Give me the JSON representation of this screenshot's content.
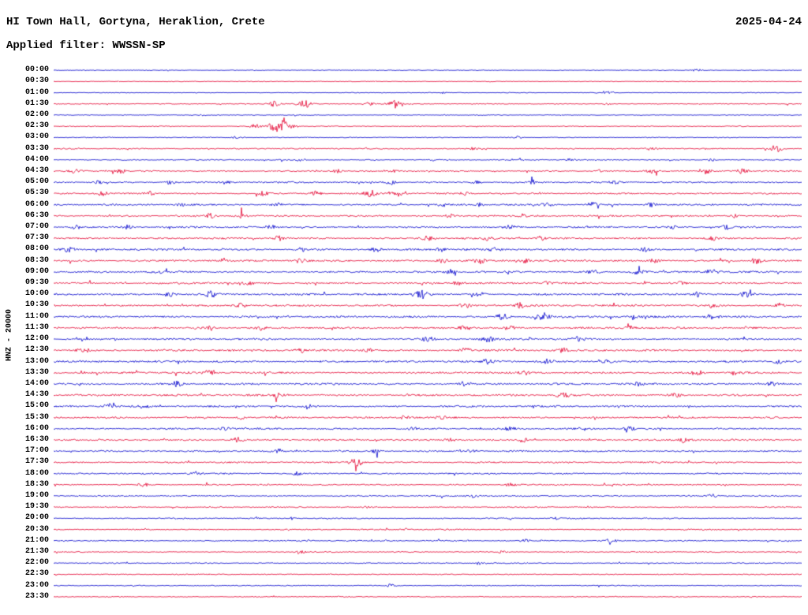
{
  "header": {
    "title": "HI Town Hall, Gortyna, Heraklion, Crete",
    "date": "2025-04-24",
    "filter_line": "Applied filter: WWSSN-SP"
  },
  "axis": {
    "left_label": "HNZ - 20000"
  },
  "chart_data": {
    "type": "line",
    "subtype": "seismogram-helicorder",
    "title": "HI Town Hall, Gortyna, Heraklion, Crete",
    "date": "2025-04-24",
    "applied_filter": "WWSSN-SP",
    "channel": "HNZ",
    "scale": 20000,
    "minutes_per_row": 30,
    "x_range_minutes": [
      0,
      30
    ],
    "grid": false,
    "legend": "none",
    "colors": {
      "blue": "#0000cc",
      "red": "#e30030"
    },
    "rows": [
      {
        "t": "00:00",
        "c": "blue",
        "n": 0.35,
        "ev": [
          [
            0.86,
            1.5
          ]
        ]
      },
      {
        "t": "00:30",
        "c": "red",
        "n": 0.35,
        "ev": []
      },
      {
        "t": "01:00",
        "c": "blue",
        "n": 0.35,
        "ev": [
          [
            0.52,
            1.0
          ],
          [
            0.74,
            1.5
          ]
        ]
      },
      {
        "t": "01:30",
        "c": "red",
        "n": 0.45,
        "ev": [
          [
            0.295,
            3.5
          ],
          [
            0.335,
            5.0
          ],
          [
            0.42,
            2.5
          ],
          [
            0.455,
            4.5
          ],
          [
            0.74,
            1.5
          ]
        ]
      },
      {
        "t": "02:00",
        "c": "blue",
        "n": 0.4,
        "ev": [
          [
            0.2,
            1.0
          ]
        ]
      },
      {
        "t": "02:30",
        "c": "red",
        "n": 0.45,
        "ev": [
          [
            0.27,
            3.0
          ],
          [
            0.3,
            8.0
          ],
          [
            0.315,
            4.0
          ]
        ]
      },
      {
        "t": "03:00",
        "c": "blue",
        "n": 0.45,
        "ev": [
          [
            0.245,
            1.5
          ],
          [
            0.62,
            1.5
          ]
        ]
      },
      {
        "t": "03:30",
        "c": "red",
        "n": 0.6,
        "ev": [
          [
            0.56,
            1.5
          ],
          [
            0.8,
            2.0
          ],
          [
            0.965,
            4.5
          ]
        ]
      },
      {
        "t": "04:00",
        "c": "blue",
        "n": 0.55,
        "ev": [
          [
            0.33,
            1.5
          ],
          [
            0.69,
            1.5
          ],
          [
            0.88,
            1.5
          ]
        ]
      },
      {
        "t": "04:30",
        "c": "red",
        "n": 0.7,
        "ev": [
          [
            0.03,
            3.0
          ],
          [
            0.09,
            2.5
          ],
          [
            0.38,
            2.0
          ],
          [
            0.45,
            2.0
          ],
          [
            0.73,
            2.0
          ],
          [
            0.8,
            2.5
          ],
          [
            0.875,
            2.5
          ],
          [
            0.92,
            3.0
          ]
        ]
      },
      {
        "t": "05:00",
        "c": "blue",
        "n": 0.8,
        "ev": [
          [
            0.06,
            2.0
          ],
          [
            0.155,
            2.5
          ],
          [
            0.23,
            2.0
          ],
          [
            0.45,
            2.5
          ],
          [
            0.565,
            2.0
          ],
          [
            0.64,
            2.5
          ],
          [
            0.75,
            2.0
          ]
        ]
      },
      {
        "t": "05:30",
        "c": "red",
        "n": 0.8,
        "ev": [
          [
            0.065,
            2.5
          ],
          [
            0.13,
            3.0
          ],
          [
            0.28,
            2.5
          ],
          [
            0.35,
            2.5
          ],
          [
            0.425,
            4.5
          ],
          [
            0.46,
            3.0
          ],
          [
            0.55,
            2.0
          ]
        ]
      },
      {
        "t": "06:00",
        "c": "blue",
        "n": 0.85,
        "ev": [
          [
            0.17,
            2.0
          ],
          [
            0.3,
            2.0
          ],
          [
            0.52,
            2.0
          ],
          [
            0.57,
            2.0
          ],
          [
            0.66,
            2.5
          ],
          [
            0.72,
            2.5
          ],
          [
            0.8,
            2.5
          ]
        ]
      },
      {
        "t": "06:30",
        "c": "red",
        "n": 0.85,
        "ev": [
          [
            0.21,
            3.0
          ],
          [
            0.25,
            2.5
          ],
          [
            0.53,
            2.0
          ],
          [
            0.625,
            2.0
          ],
          [
            0.91,
            2.0
          ]
        ]
      },
      {
        "t": "07:00",
        "c": "blue",
        "n": 0.9,
        "ev": [
          [
            0.03,
            2.5
          ],
          [
            0.1,
            2.5
          ],
          [
            0.29,
            2.0
          ],
          [
            0.61,
            2.5
          ],
          [
            0.83,
            2.0
          ],
          [
            0.9,
            2.5
          ]
        ]
      },
      {
        "t": "07:30",
        "c": "red",
        "n": 0.9,
        "ev": [
          [
            0.3,
            3.0
          ],
          [
            0.5,
            3.0
          ],
          [
            0.58,
            2.5
          ],
          [
            0.65,
            2.5
          ],
          [
            0.88,
            2.5
          ]
        ]
      },
      {
        "t": "08:00",
        "c": "blue",
        "n": 1.0,
        "ev": [
          [
            0.02,
            2.5
          ],
          [
            0.33,
            2.5
          ],
          [
            0.43,
            2.5
          ],
          [
            0.52,
            2.5
          ],
          [
            0.59,
            2.5
          ],
          [
            0.79,
            2.0
          ]
        ]
      },
      {
        "t": "08:30",
        "c": "red",
        "n": 1.0,
        "ev": [
          [
            0.33,
            2.5
          ],
          [
            0.52,
            2.5
          ],
          [
            0.57,
            3.0
          ],
          [
            0.63,
            2.5
          ],
          [
            0.805,
            2.5
          ],
          [
            0.94,
            3.5
          ]
        ]
      },
      {
        "t": "09:00",
        "c": "blue",
        "n": 1.0,
        "ev": [
          [
            0.14,
            2.5
          ],
          [
            0.53,
            2.5
          ],
          [
            0.72,
            3.0
          ],
          [
            0.78,
            3.5
          ],
          [
            0.88,
            3.0
          ]
        ]
      },
      {
        "t": "09:30",
        "c": "red",
        "n": 0.95,
        "ev": [
          [
            0.26,
            2.0
          ],
          [
            0.54,
            2.5
          ],
          [
            0.66,
            2.0
          ],
          [
            0.84,
            2.0
          ]
        ]
      },
      {
        "t": "10:00",
        "c": "blue",
        "n": 1.0,
        "ev": [
          [
            0.155,
            3.0
          ],
          [
            0.21,
            3.5
          ],
          [
            0.49,
            6.0
          ],
          [
            0.57,
            2.5
          ],
          [
            0.86,
            2.5
          ],
          [
            0.925,
            3.5
          ]
        ]
      },
      {
        "t": "10:30",
        "c": "red",
        "n": 1.0,
        "ev": [
          [
            0.25,
            2.5
          ],
          [
            0.55,
            3.0
          ],
          [
            0.625,
            3.5
          ],
          [
            0.88,
            3.0
          ],
          [
            0.97,
            2.5
          ]
        ]
      },
      {
        "t": "11:00",
        "c": "blue",
        "n": 1.0,
        "ev": [
          [
            0.6,
            3.5
          ],
          [
            0.655,
            5.0
          ],
          [
            0.78,
            2.5
          ],
          [
            0.88,
            3.0
          ]
        ]
      },
      {
        "t": "11:30",
        "c": "red",
        "n": 1.0,
        "ev": [
          [
            0.21,
            3.0
          ],
          [
            0.28,
            2.5
          ],
          [
            0.55,
            3.5
          ],
          [
            0.61,
            3.0
          ],
          [
            0.77,
            2.5
          ]
        ]
      },
      {
        "t": "12:00",
        "c": "blue",
        "n": 1.0,
        "ev": [
          [
            0.5,
            3.0
          ],
          [
            0.58,
            3.5
          ],
          [
            0.7,
            2.5
          ]
        ]
      },
      {
        "t": "12:30",
        "c": "red",
        "n": 1.05,
        "ev": [
          [
            0.04,
            3.0
          ],
          [
            0.33,
            2.5
          ],
          [
            0.42,
            2.5
          ],
          [
            0.55,
            2.5
          ],
          [
            0.68,
            2.5
          ]
        ]
      },
      {
        "t": "13:00",
        "c": "blue",
        "n": 1.05,
        "ev": [
          [
            0.58,
            2.5
          ],
          [
            0.66,
            3.5
          ],
          [
            0.74,
            2.5
          ],
          [
            0.97,
            2.5
          ]
        ]
      },
      {
        "t": "13:30",
        "c": "red",
        "n": 1.05,
        "ev": [
          [
            0.21,
            3.0
          ],
          [
            0.63,
            2.0
          ],
          [
            0.86,
            3.0
          ],
          [
            0.91,
            2.5
          ]
        ]
      },
      {
        "t": "14:00",
        "c": "blue",
        "n": 1.0,
        "ev": [
          [
            0.165,
            3.0
          ],
          [
            0.55,
            3.0
          ],
          [
            0.78,
            2.0
          ],
          [
            0.96,
            2.5
          ]
        ]
      },
      {
        "t": "14:30",
        "c": "red",
        "n": 1.0,
        "ev": [
          [
            0.3,
            2.0
          ],
          [
            0.68,
            3.5
          ],
          [
            0.83,
            2.5
          ]
        ]
      },
      {
        "t": "15:00",
        "c": "blue",
        "n": 0.95,
        "ev": [
          [
            0.075,
            3.0
          ],
          [
            0.12,
            2.5
          ],
          [
            0.34,
            2.0
          ]
        ]
      },
      {
        "t": "15:30",
        "c": "red",
        "n": 0.9,
        "ev": [
          [
            0.25,
            2.0
          ],
          [
            0.47,
            2.5
          ],
          [
            0.52,
            2.0
          ]
        ]
      },
      {
        "t": "16:00",
        "c": "blue",
        "n": 0.9,
        "ev": [
          [
            0.23,
            2.0
          ],
          [
            0.48,
            2.0
          ],
          [
            0.61,
            2.0
          ],
          [
            0.77,
            2.5
          ]
        ]
      },
      {
        "t": "16:30",
        "c": "red",
        "n": 0.9,
        "ev": [
          [
            0.245,
            3.0
          ],
          [
            0.53,
            2.0
          ],
          [
            0.63,
            2.5
          ],
          [
            0.845,
            3.5
          ]
        ]
      },
      {
        "t": "17:00",
        "c": "blue",
        "n": 0.85,
        "ev": [
          [
            0.3,
            2.5
          ],
          [
            0.43,
            2.0
          ],
          [
            0.56,
            2.0
          ]
        ]
      },
      {
        "t": "17:30",
        "c": "red",
        "n": 0.8,
        "ev": [
          [
            0.405,
            5.0
          ]
        ]
      },
      {
        "t": "18:00",
        "c": "blue",
        "n": 0.75,
        "ev": [
          [
            0.19,
            2.5
          ],
          [
            0.325,
            2.0
          ]
        ]
      },
      {
        "t": "18:30",
        "c": "red",
        "n": 0.7,
        "ev": [
          [
            0.12,
            2.0
          ],
          [
            0.61,
            2.0
          ]
        ]
      },
      {
        "t": "19:00",
        "c": "blue",
        "n": 0.7,
        "ev": [
          [
            0.56,
            2.0
          ],
          [
            0.88,
            2.0
          ]
        ]
      },
      {
        "t": "19:30",
        "c": "red",
        "n": 0.65,
        "ev": [
          [
            0.42,
            1.5
          ]
        ]
      },
      {
        "t": "20:00",
        "c": "blue",
        "n": 0.65,
        "ev": [
          [
            0.32,
            1.5
          ],
          [
            0.67,
            1.5
          ]
        ]
      },
      {
        "t": "20:30",
        "c": "red",
        "n": 0.6,
        "ev": [
          [
            0.47,
            1.5
          ]
        ]
      },
      {
        "t": "21:00",
        "c": "blue",
        "n": 0.6,
        "ev": [
          [
            0.63,
            2.0
          ],
          [
            0.745,
            2.5
          ]
        ]
      },
      {
        "t": "21:30",
        "c": "red",
        "n": 0.55,
        "ev": [
          [
            0.33,
            1.5
          ],
          [
            0.6,
            1.5
          ]
        ]
      },
      {
        "t": "22:00",
        "c": "blue",
        "n": 0.55,
        "ev": [
          [
            0.57,
            2.0
          ]
        ]
      },
      {
        "t": "22:30",
        "c": "red",
        "n": 0.5,
        "ev": []
      },
      {
        "t": "23:00",
        "c": "blue",
        "n": 0.5,
        "ev": [
          [
            0.45,
            2.0
          ]
        ]
      },
      {
        "t": "23:30",
        "c": "red",
        "n": 0.45,
        "ev": []
      }
    ]
  }
}
